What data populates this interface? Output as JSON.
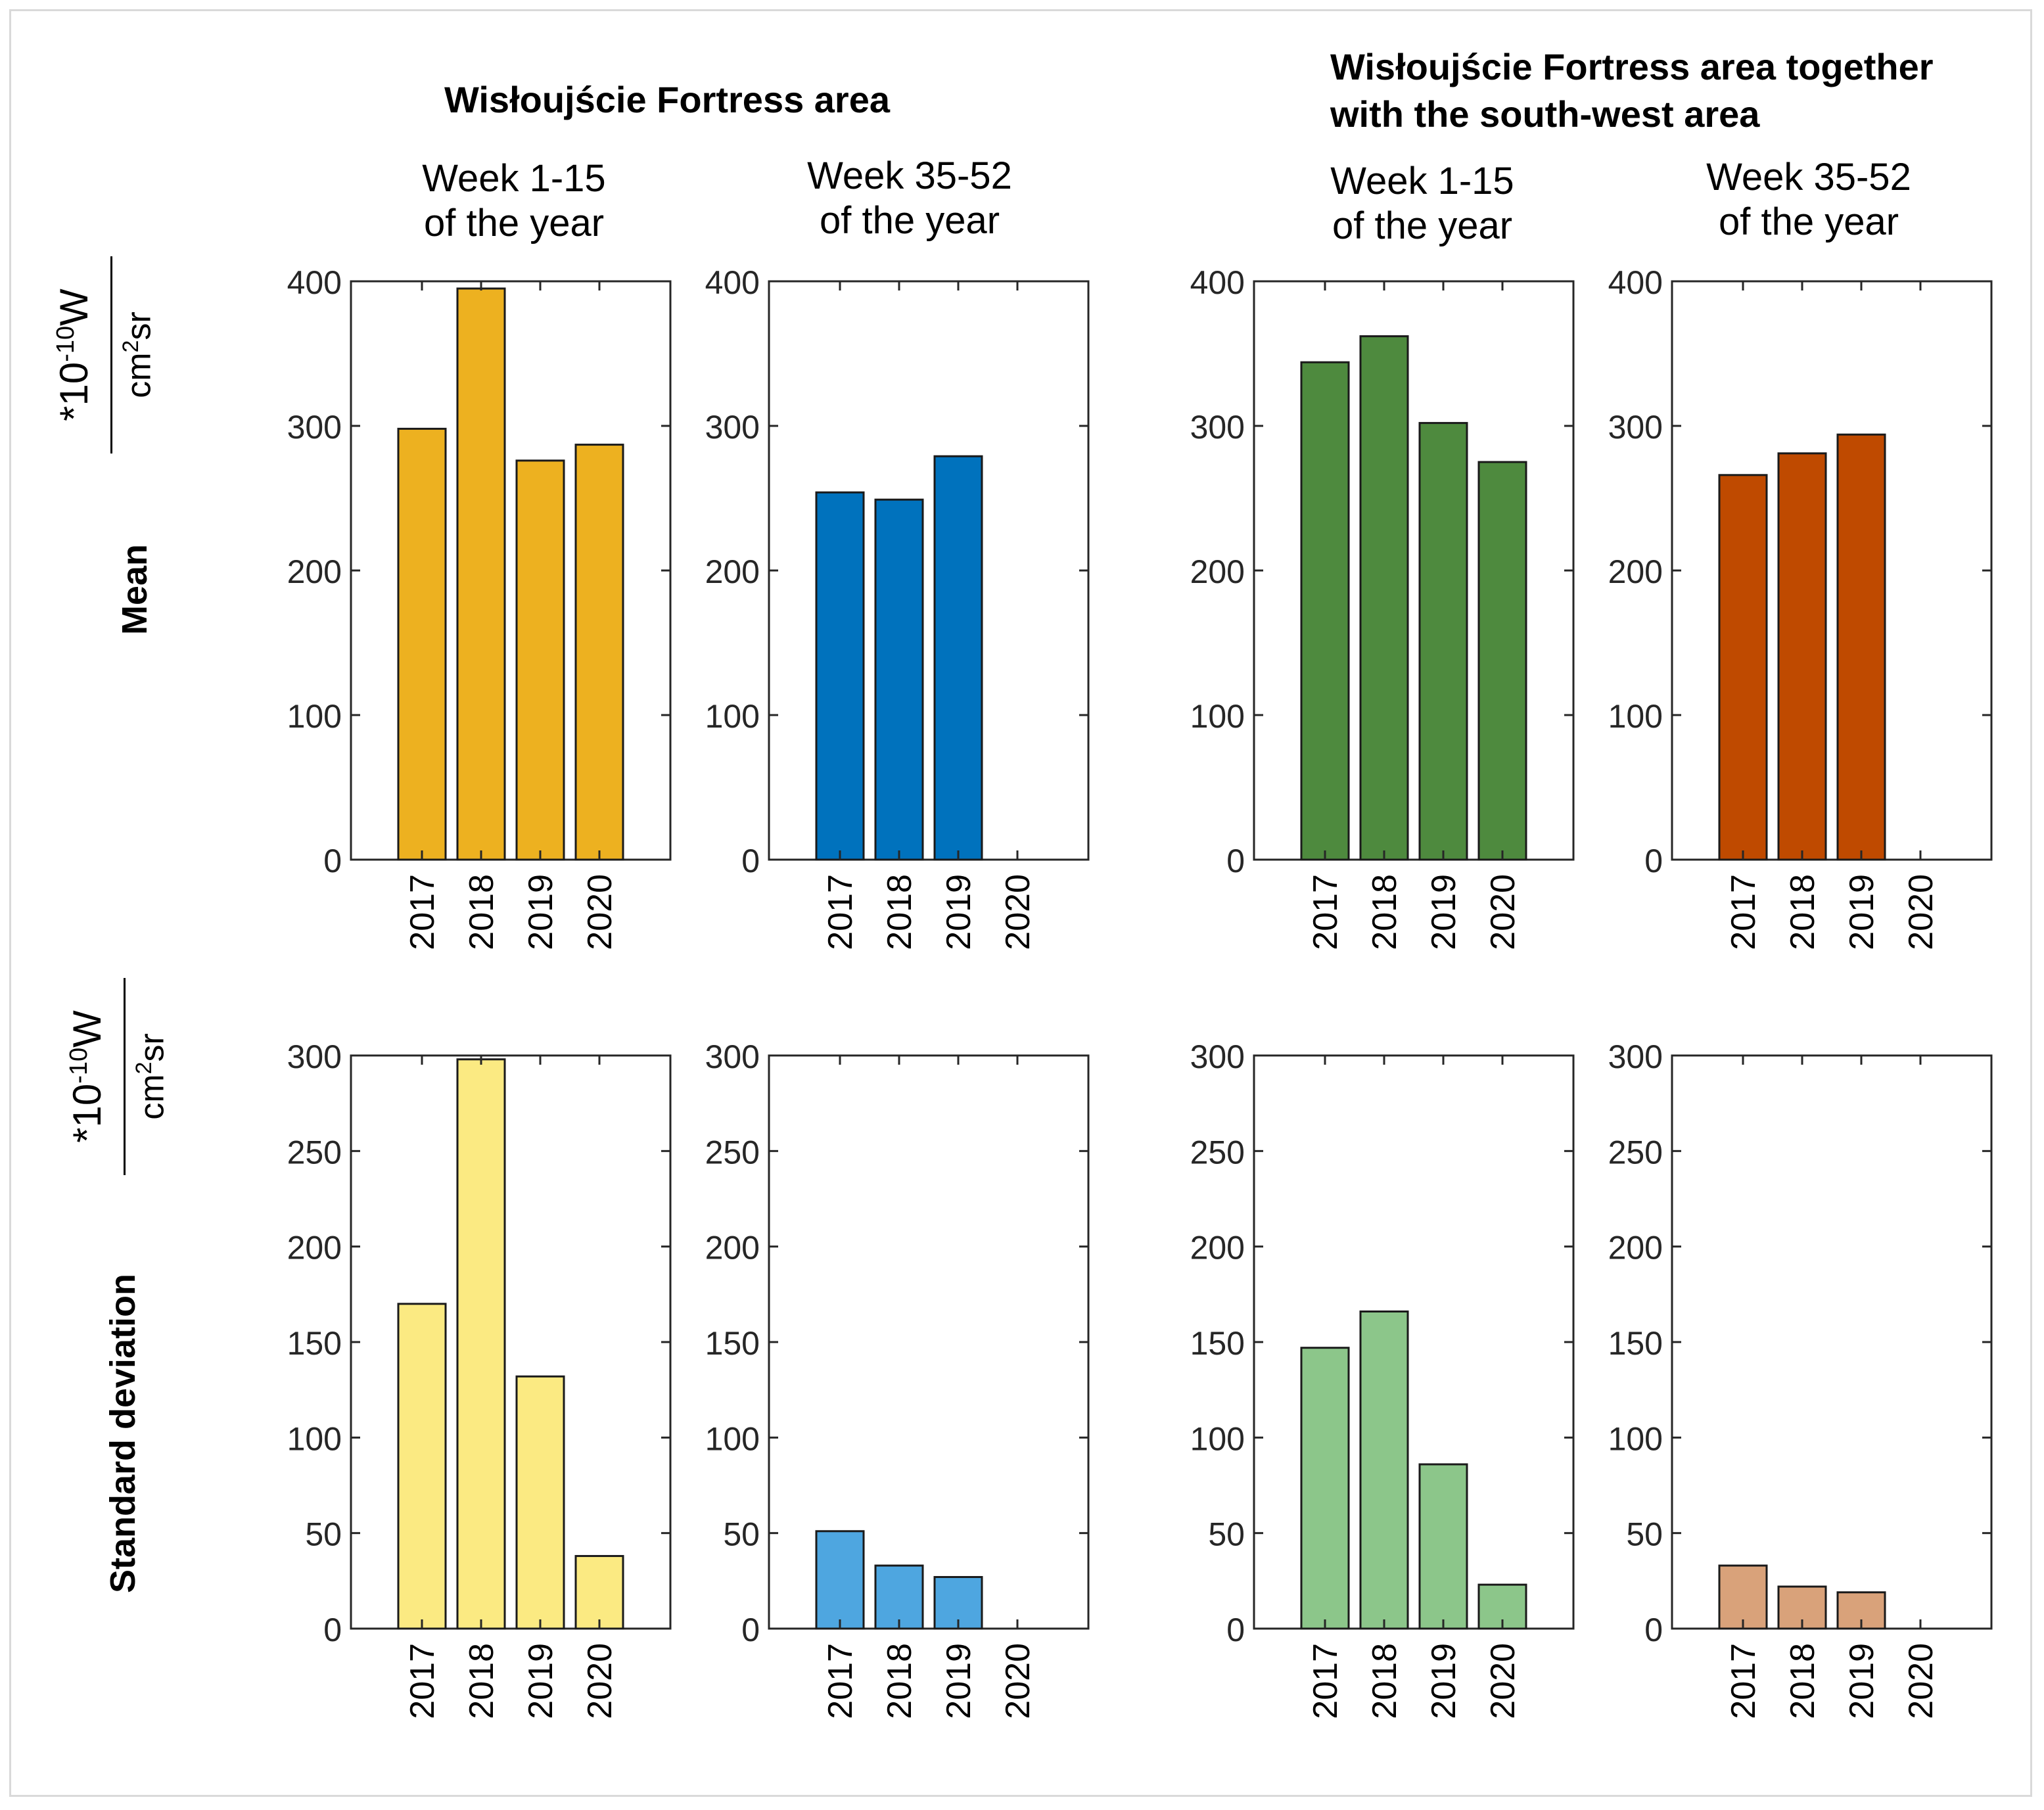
{
  "group_titles": {
    "left": "Wisłoujście Fortress area",
    "right_line1": "Wisłoujście Fortress area together",
    "right_line2": "with the south-west area"
  },
  "column_titles": [
    {
      "line1": "Week 1-15",
      "line2": "of the year"
    },
    {
      "line1": "Week 35-52",
      "line2": "of the year"
    },
    {
      "line1": "Week 1-15",
      "line2": "of the year"
    },
    {
      "line1": "Week 35-52",
      "line2": "of the year"
    }
  ],
  "row_labels": {
    "mean": "Mean",
    "std": "Standard deviation"
  },
  "unit": {
    "numerator_prefix": "*10",
    "numerator_exp": "-10",
    "numerator_unit": "W",
    "denominator_base": "cm",
    "denominator_exp": "2",
    "denominator_suffix": "sr"
  },
  "colors": {
    "mean": [
      "#EDB120",
      "#0072BD",
      "#4E8A3E",
      "#BF4A00"
    ],
    "std": [
      "#FBEA82",
      "#4EA6E0",
      "#8CC68A",
      "#D9A27A"
    ],
    "edge": "#1a1a1a",
    "axis": "#262626"
  },
  "chart_data": [
    {
      "type": "bar",
      "row": "Mean",
      "title": "Week 1-15 of the year",
      "group": "Wisłoujście Fortress area",
      "categories": [
        "2017",
        "2018",
        "2019",
        "2020"
      ],
      "values": [
        298,
        395,
        276,
        287
      ],
      "ylim": [
        0,
        400
      ],
      "yticks": [
        0,
        100,
        200,
        300,
        400
      ]
    },
    {
      "type": "bar",
      "row": "Mean",
      "title": "Week 35-52 of the year",
      "group": "Wisłoujście Fortress area",
      "categories": [
        "2017",
        "2018",
        "2019",
        "2020"
      ],
      "values": [
        254,
        249,
        279,
        null
      ],
      "ylim": [
        0,
        400
      ],
      "yticks": [
        0,
        100,
        200,
        300,
        400
      ]
    },
    {
      "type": "bar",
      "row": "Mean",
      "title": "Week 1-15 of the year",
      "group": "Wisłoujście Fortress area together with the south-west area",
      "categories": [
        "2017",
        "2018",
        "2019",
        "2020"
      ],
      "values": [
        344,
        362,
        302,
        275
      ],
      "ylim": [
        0,
        400
      ],
      "yticks": [
        0,
        100,
        200,
        300,
        400
      ]
    },
    {
      "type": "bar",
      "row": "Mean",
      "title": "Week 35-52 of the year",
      "group": "Wisłoujście Fortress area together with the south-west area",
      "categories": [
        "2017",
        "2018",
        "2019",
        "2020"
      ],
      "values": [
        266,
        281,
        294,
        null
      ],
      "ylim": [
        0,
        400
      ],
      "yticks": [
        0,
        100,
        200,
        300,
        400
      ]
    },
    {
      "type": "bar",
      "row": "Standard deviation",
      "title": "Week 1-15 of the year",
      "group": "Wisłoujście Fortress area",
      "categories": [
        "2017",
        "2018",
        "2019",
        "2020"
      ],
      "values": [
        170,
        298,
        132,
        38
      ],
      "ylim": [
        0,
        300
      ],
      "yticks": [
        0,
        50,
        100,
        150,
        200,
        250,
        300
      ]
    },
    {
      "type": "bar",
      "row": "Standard deviation",
      "title": "Week 35-52 of the year",
      "group": "Wisłoujście Fortress area",
      "categories": [
        "2017",
        "2018",
        "2019",
        "2020"
      ],
      "values": [
        51,
        33,
        27,
        null
      ],
      "ylim": [
        0,
        300
      ],
      "yticks": [
        0,
        50,
        100,
        150,
        200,
        250,
        300
      ]
    },
    {
      "type": "bar",
      "row": "Standard deviation",
      "title": "Week 1-15 of the year",
      "group": "Wisłoujście Fortress area together with the south-west area",
      "categories": [
        "2017",
        "2018",
        "2019",
        "2020"
      ],
      "values": [
        147,
        166,
        86,
        23
      ],
      "ylim": [
        0,
        300
      ],
      "yticks": [
        0,
        50,
        100,
        150,
        200,
        250,
        300
      ]
    },
    {
      "type": "bar",
      "row": "Standard deviation",
      "title": "Week 35-52 of the year",
      "group": "Wisłoujście Fortress area together with the south-west area",
      "categories": [
        "2017",
        "2018",
        "2019",
        "2020"
      ],
      "values": [
        33,
        22,
        19,
        null
      ],
      "ylim": [
        0,
        300
      ],
      "yticks": [
        0,
        50,
        100,
        150,
        200,
        250,
        300
      ]
    }
  ]
}
